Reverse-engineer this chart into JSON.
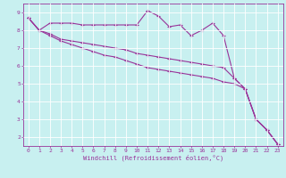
{
  "xlabel": "Windchill (Refroidissement éolien,°C)",
  "bg_color": "#c8f0f0",
  "grid_color": "#ffffff",
  "line_color": "#993399",
  "xlim": [
    -0.5,
    23.5
  ],
  "ylim": [
    1.5,
    9.5
  ],
  "yticks": [
    2,
    3,
    4,
    5,
    6,
    7,
    8,
    9
  ],
  "xticks": [
    0,
    1,
    2,
    3,
    4,
    5,
    6,
    7,
    8,
    9,
    10,
    11,
    12,
    13,
    14,
    15,
    16,
    17,
    18,
    19,
    20,
    21,
    22,
    23
  ],
  "line1_x": [
    0,
    1,
    2,
    3,
    4,
    5,
    6,
    7,
    8,
    9,
    10,
    11,
    12,
    13,
    14,
    15,
    16,
    17,
    18,
    19,
    20,
    21,
    22,
    23
  ],
  "line1_y": [
    8.7,
    8.0,
    8.4,
    8.4,
    8.4,
    8.3,
    8.3,
    8.3,
    8.3,
    8.3,
    8.3,
    9.1,
    8.8,
    8.2,
    8.3,
    7.7,
    8.0,
    8.4,
    7.7,
    5.3,
    4.7,
    3.0,
    2.4,
    1.6
  ],
  "line2_x": [
    0,
    1,
    2,
    3,
    4,
    5,
    6,
    7,
    8,
    9,
    10,
    11,
    12,
    13,
    14,
    15,
    16,
    17,
    18,
    19,
    20,
    21,
    22,
    23
  ],
  "line2_y": [
    8.7,
    8.0,
    7.8,
    7.5,
    7.4,
    7.3,
    7.2,
    7.1,
    7.0,
    6.9,
    6.7,
    6.6,
    6.5,
    6.4,
    6.3,
    6.2,
    6.1,
    6.0,
    5.9,
    5.3,
    4.7,
    3.0,
    2.4,
    1.6
  ],
  "line3_x": [
    0,
    1,
    2,
    3,
    4,
    5,
    6,
    7,
    8,
    9,
    10,
    11,
    12,
    13,
    14,
    15,
    16,
    17,
    18,
    19,
    20,
    21,
    22,
    23
  ],
  "line3_y": [
    8.7,
    8.0,
    7.7,
    7.4,
    7.2,
    7.0,
    6.8,
    6.6,
    6.5,
    6.3,
    6.1,
    5.9,
    5.8,
    5.7,
    5.6,
    5.5,
    5.4,
    5.3,
    5.1,
    5.0,
    4.7,
    3.0,
    2.4,
    1.6
  ]
}
